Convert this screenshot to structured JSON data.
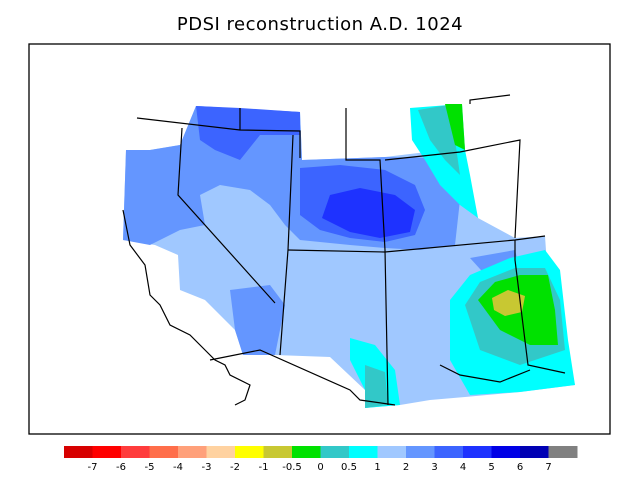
{
  "title": "PDSI reconstruction A.D. 1024",
  "legend": {
    "colors": [
      "#d70000",
      "#ff0000",
      "#ff3c3c",
      "#ff6e4a",
      "#ffa07a",
      "#ffd2a0",
      "#ffff00",
      "#c8c832",
      "#00e100",
      "#32c8c8",
      "#00ffff",
      "#a0c8ff",
      "#6496ff",
      "#3c64ff",
      "#1e32ff",
      "#0000e6",
      "#0000b4",
      "#808080"
    ],
    "labels": [
      "-7",
      "-6",
      "-5",
      "-4",
      "-3",
      "-2",
      "-1",
      "-0.5",
      "0",
      "0.5",
      "1",
      "2",
      "3",
      "4",
      "5",
      "6",
      "7"
    ]
  }
}
